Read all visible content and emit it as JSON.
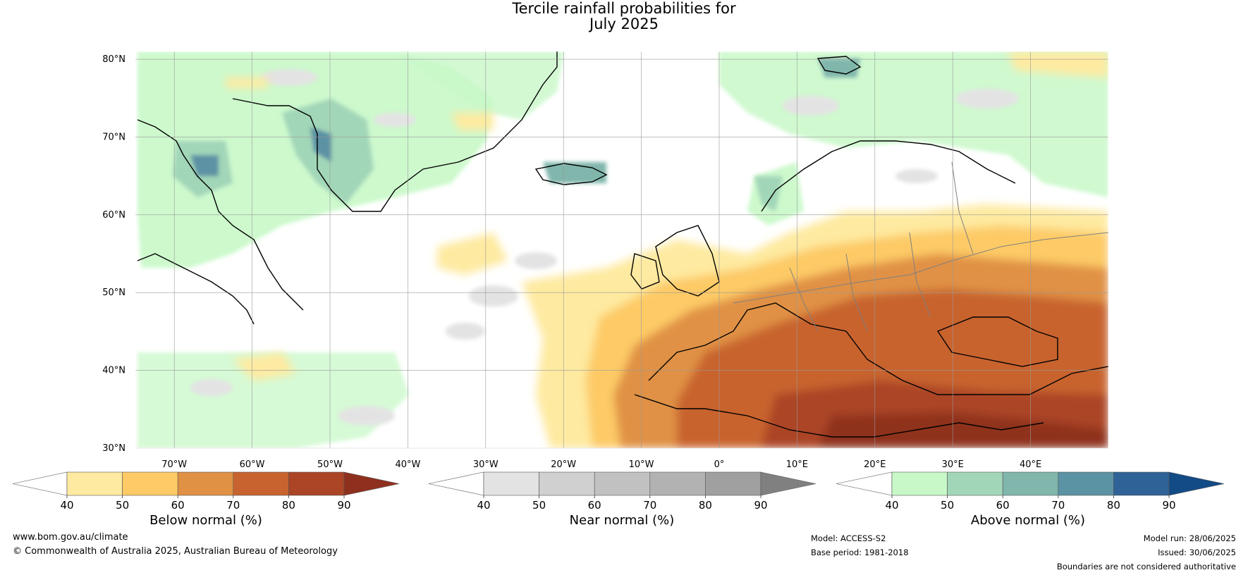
{
  "title": {
    "line1": "Tercile rainfall probabilities for",
    "line2": "July 2025"
  },
  "map": {
    "lat_labels": [
      "80°N",
      "70°N",
      "60°N",
      "50°N",
      "40°N",
      "30°N"
    ],
    "lat_values": [
      80,
      70,
      60,
      50,
      40,
      30
    ],
    "lon_labels": [
      "70°W",
      "60°W",
      "50°W",
      "40°W",
      "30°W",
      "20°W",
      "10°W",
      "0°",
      "10°E",
      "20°E",
      "30°E",
      "40°E"
    ],
    "lon_values": [
      -70,
      -60,
      -50,
      -40,
      -30,
      -20,
      -10,
      0,
      10,
      20,
      30,
      40
    ],
    "lon_range": [
      -75,
      50
    ],
    "lat_range": [
      30,
      81
    ],
    "grid": true
  },
  "colorbars": [
    {
      "label": "Below normal (%)",
      "ticks": [
        "40",
        "50",
        "60",
        "70",
        "80",
        "90"
      ],
      "colors": [
        "#ffffff",
        "#feeaa0",
        "#fdca66",
        "#e09144",
        "#c8632f",
        "#ab4525",
        "#8f301f"
      ]
    },
    {
      "label": "Near normal (%)",
      "ticks": [
        "40",
        "50",
        "60",
        "70",
        "80",
        "90"
      ],
      "colors": [
        "#ffffff",
        "#e3e3e3",
        "#d0d0d0",
        "#c1c1c1",
        "#b2b2b2",
        "#a0a0a0",
        "#808080"
      ]
    },
    {
      "label": "Above normal (%)",
      "ticks": [
        "40",
        "50",
        "60",
        "70",
        "80",
        "90"
      ],
      "colors": [
        "#ffffff",
        "#c8f8c8",
        "#a2d6b8",
        "#80b6ac",
        "#5b92a4",
        "#2f6296",
        "#134b86"
      ]
    }
  ],
  "footer": {
    "url": "www.bom.gov.au/climate",
    "copyright": "© Commonwealth of Australia 2025, Australian Bureau of Meteorology",
    "model": "Model: ACCESS-S2",
    "base_period": "Base period: 1981-2018",
    "model_run": "Model run: 28/06/2025",
    "issued": "Issued: 30/06/2025",
    "disclaimer": "Boundaries are not considered authoritative"
  }
}
